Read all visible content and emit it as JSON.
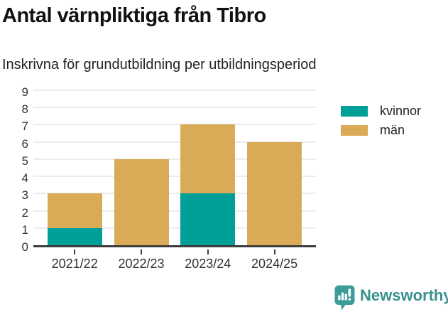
{
  "header": {
    "title": "Antal värnpliktiga från Tibro",
    "subtitle": "Inskrivna för grundutbildning per utbildningsperiod"
  },
  "chart_data": {
    "type": "bar",
    "stacked": true,
    "title": "Antal värnpliktiga från Tibro",
    "subtitle": "Inskrivna för grundutbildning per utbildningsperiod",
    "categories": [
      "2021/22",
      "2022/23",
      "2023/24",
      "2024/25"
    ],
    "series": [
      {
        "name": "kvinnor",
        "color": "#00a098",
        "values": [
          1,
          0,
          3,
          0
        ]
      },
      {
        "name": "män",
        "color": "#d9ab57",
        "values": [
          2,
          5,
          4,
          6
        ]
      }
    ],
    "totals": [
      3,
      5,
      7,
      6
    ],
    "xlabel": "",
    "ylabel": "",
    "ylim": [
      0,
      9
    ],
    "yticks": [
      0,
      1,
      2,
      3,
      4,
      5,
      6,
      7,
      8,
      9
    ],
    "grid": true,
    "legend_position": "right"
  },
  "footer": {
    "brand": "Newsworthy",
    "brand_color": "#38918e",
    "logo_icon": "bar-chart-speech-bubble"
  },
  "colors": {
    "kvinnor": "#00a098",
    "man": "#d9ab57",
    "axis": "#3d3d3d",
    "grid": "#ececec",
    "title_text": "#111111",
    "body_text": "#222222",
    "tick_text": "#333333"
  }
}
